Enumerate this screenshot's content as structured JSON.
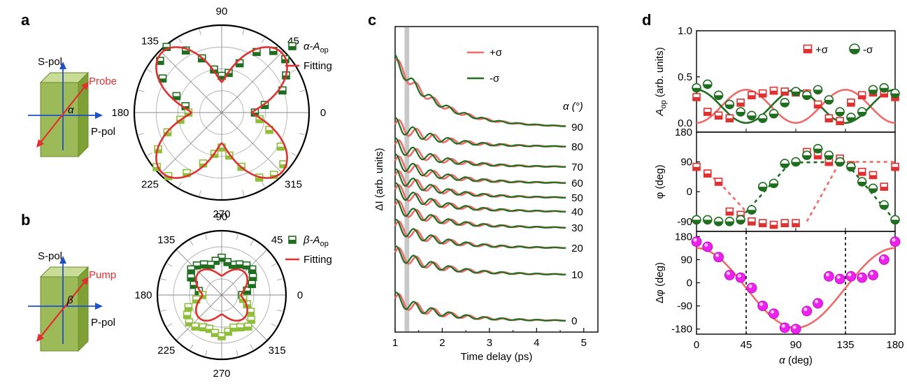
{
  "panel_labels": {
    "a": "a",
    "b": "b",
    "c": "c",
    "d": "d"
  },
  "colors": {
    "dark_green": "#1f6e1f",
    "light_green": "#8fbf3a",
    "red": "#e03030",
    "light_red": "#ef6a6a",
    "magenta": "#ee22ee",
    "blue": "#1e50c8"
  },
  "schematic_a": {
    "s_label": "S-pol",
    "p_label": "P-pol",
    "beam_label": "Probe",
    "angle_symbol": "α"
  },
  "schematic_b": {
    "s_label": "S-pol",
    "p_label": "P-pol",
    "beam_label": "Pump",
    "angle_symbol": "β"
  },
  "chart_data": [
    {
      "id": "a-polar",
      "type": "scatter",
      "projection": "polar",
      "angle_ticks": [
        "0",
        "45",
        "90",
        "135",
        "180",
        "225",
        "270",
        "315"
      ],
      "legend": [
        {
          "label": "α-A",
          "sub": "op",
          "marker": "half-filled square"
        },
        {
          "label": "Fitting",
          "marker": "line"
        }
      ],
      "series": [
        {
          "name": "α-Aop",
          "angles_deg": [
            0,
            10,
            20,
            30,
            40,
            50,
            60,
            70,
            80,
            90,
            100,
            110,
            120,
            130,
            140,
            150,
            160,
            170,
            180,
            190,
            200,
            210,
            220,
            230,
            240,
            250,
            260,
            270,
            280,
            290,
            300,
            310,
            320,
            330,
            340,
            350
          ],
          "values": [
            0.38,
            0.5,
            0.74,
            0.85,
            0.95,
            0.92,
            0.8,
            0.6,
            0.46,
            0.42,
            0.5,
            0.66,
            0.82,
            0.98,
            0.92,
            0.78,
            0.55,
            0.42,
            0.38,
            0.48,
            0.66,
            0.84,
            0.97,
            0.95,
            0.8,
            0.62,
            0.48,
            0.4,
            0.5,
            0.66,
            0.86,
            0.93,
            0.92,
            0.78,
            0.58,
            0.44
          ]
        },
        {
          "name": "Fitting",
          "function": "r = 0.35 + 0.62*|sin(2θ)|^1.5"
        }
      ]
    },
    {
      "id": "b-polar",
      "type": "scatter",
      "projection": "polar",
      "angle_ticks": [
        "0",
        "45",
        "90",
        "135",
        "180",
        "225",
        "270",
        "315"
      ],
      "legend": [
        {
          "label": "β-A",
          "sub": "op",
          "marker": "half-filled square"
        },
        {
          "label": "Fitting",
          "marker": "line"
        }
      ],
      "series": [
        {
          "name": "β-Aop",
          "angles_deg": [
            0,
            10,
            20,
            30,
            40,
            50,
            60,
            70,
            80,
            90,
            100,
            110,
            120,
            130,
            140,
            150,
            160,
            170,
            180,
            190,
            200,
            210,
            220,
            230,
            240,
            250,
            260,
            270,
            280,
            290,
            300,
            310,
            320,
            330,
            340,
            350
          ],
          "values": [
            0.32,
            0.4,
            0.5,
            0.56,
            0.62,
            0.6,
            0.55,
            0.5,
            0.52,
            0.58,
            0.54,
            0.5,
            0.55,
            0.6,
            0.62,
            0.55,
            0.46,
            0.36,
            0.3,
            0.4,
            0.55,
            0.62,
            0.66,
            0.64,
            0.58,
            0.56,
            0.6,
            0.64,
            0.58,
            0.54,
            0.58,
            0.64,
            0.6,
            0.52,
            0.42,
            0.34
          ]
        },
        {
          "name": "Fitting",
          "function": "r = 0.30 + 0.20*|sin(2θ)|^1.5"
        }
      ]
    },
    {
      "id": "c-traces",
      "type": "line",
      "xlabel": "Time delay (ps)",
      "ylabel": "ΔI (arb. units)",
      "xlim": [
        1,
        5.3
      ],
      "x_ticks": [
        "1",
        "2",
        "3",
        "4",
        "5"
      ],
      "legend": [
        {
          "label": "+σ"
        },
        {
          "label": "-σ"
        }
      ],
      "offset_unit": "α (°)",
      "offsets": [
        "0",
        "10",
        "20",
        "30",
        "40",
        "50",
        "60",
        "70",
        "80",
        "90"
      ],
      "highlight_band_ps": [
        1.2,
        1.3
      ],
      "series": [
        {
          "name": "+σ",
          "model": "damped oscillation ~2.7 THz"
        },
        {
          "name": "-σ",
          "model": "damped oscillation ~2.7 THz"
        }
      ]
    },
    {
      "id": "d-top",
      "type": "scatter",
      "ylabel": "A",
      "ylabel_sub": "op",
      "ylabel_suffix": " (arb. units)",
      "ylim": [
        -0.1,
        1.0
      ],
      "y_ticks": [
        "0.0",
        "0.5",
        "1.0"
      ],
      "legend": [
        {
          "label": "+σ",
          "marker": "half-filled square"
        },
        {
          "label": "-σ",
          "marker": "half-filled circle"
        }
      ],
      "x": [
        0,
        10,
        20,
        30,
        40,
        50,
        60,
        70,
        80,
        90,
        100,
        110,
        120,
        130,
        140,
        150,
        160,
        170,
        180
      ],
      "series": [
        {
          "name": "+σ",
          "values": [
            0.28,
            0.12,
            0.08,
            0.05,
            0.22,
            0.3,
            0.32,
            0.35,
            0.34,
            0.33,
            0.32,
            0.2,
            0.05,
            0.02,
            0.22,
            0.3,
            0.33,
            0.32,
            0.28
          ]
        },
        {
          "name": "-σ",
          "values": [
            0.38,
            0.42,
            0.3,
            0.2,
            0.12,
            0.08,
            0.05,
            0.1,
            0.22,
            0.34,
            0.3,
            0.36,
            0.25,
            0.12,
            0.06,
            0.12,
            0.36,
            0.38,
            0.32
          ]
        },
        {
          "name": "+σ fit",
          "function": "0.18 - 0.18*cos(4α)"
        },
        {
          "name": "-σ fit",
          "function": "0.18 + 0.18*cos(4α)"
        }
      ]
    },
    {
      "id": "d-mid",
      "type": "scatter",
      "ylabel": "φ (deg)",
      "ylim": [
        -120,
        180
      ],
      "y_ticks": [
        "-90",
        "0",
        "90",
        "180"
      ],
      "x": [
        0,
        10,
        20,
        30,
        40,
        50,
        60,
        70,
        80,
        90,
        100,
        110,
        120,
        130,
        140,
        150,
        160,
        170,
        180
      ],
      "series": [
        {
          "name": "+σ",
          "values": [
            75,
            55,
            30,
            -60,
            -70,
            -90,
            -95,
            -100,
            -95,
            -95,
            120,
            110,
            90,
            100,
            80,
            60,
            50,
            15,
            75
          ]
        },
        {
          "name": "-σ",
          "values": [
            -85,
            -85,
            -90,
            -90,
            -85,
            -55,
            15,
            25,
            85,
            90,
            110,
            130,
            110,
            90,
            75,
            30,
            10,
            -40,
            -85
          ]
        }
      ]
    },
    {
      "id": "d-bottom",
      "type": "scatter",
      "xlabel": "α (deg)",
      "ylabel": "Δφ (deg)",
      "xlim": [
        0,
        180
      ],
      "ylim": [
        -200,
        200
      ],
      "x_ticks": [
        "0",
        "45",
        "90",
        "135",
        "180"
      ],
      "y_ticks": [
        "-180",
        "-90",
        "0",
        "90",
        "180"
      ],
      "vlines": [
        45,
        135
      ],
      "x": [
        0,
        10,
        20,
        30,
        40,
        50,
        60,
        70,
        80,
        90,
        100,
        110,
        120,
        130,
        140,
        150,
        160,
        170,
        180
      ],
      "series": [
        {
          "name": "Δφ",
          "values": [
            160,
            140,
            100,
            30,
            20,
            -20,
            -90,
            -120,
            -175,
            -180,
            -110,
            -80,
            25,
            15,
            25,
            20,
            30,
            90,
            160
          ]
        },
        {
          "name": "fit",
          "function": "20 + 140*cos(2α)"
        }
      ]
    }
  ]
}
